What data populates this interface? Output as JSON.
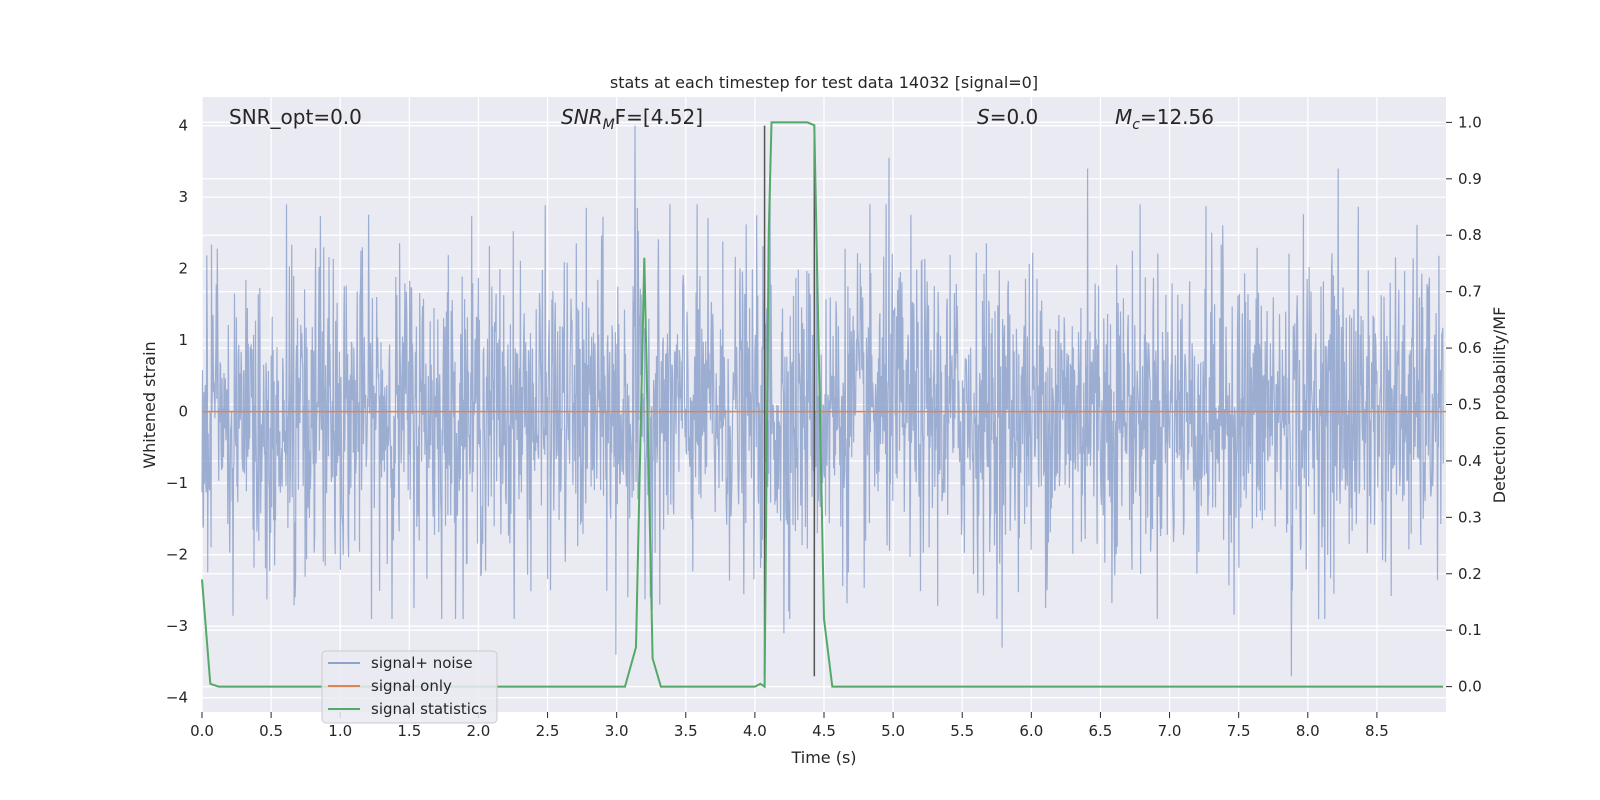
{
  "chart_data": {
    "type": "line",
    "title": "stats at each timestep for test data 14032 [signal=0]",
    "xlabel": "Time (s)",
    "ylabel_left": "Whitened strain",
    "ylabel_right": "Detection probability/MF",
    "xlim": [
      0.0,
      9.0
    ],
    "ylim_left": [
      -4.2,
      4.4
    ],
    "ylim_right": [
      -0.045,
      1.045
    ],
    "x_ticks": [
      "0.0",
      "0.5",
      "1.0",
      "1.5",
      "2.0",
      "2.5",
      "3.0",
      "3.5",
      "4.0",
      "4.5",
      "5.0",
      "5.5",
      "6.0",
      "6.5",
      "7.0",
      "7.5",
      "8.0",
      "8.5"
    ],
    "y_ticks_left": [
      "4",
      "3",
      "2",
      "1",
      "0",
      "−1",
      "−2",
      "−3",
      "−4"
    ],
    "y_ticks_right": [
      "1.0",
      "0.9",
      "0.8",
      "0.7",
      "0.6",
      "0.5",
      "0.4",
      "0.3",
      "0.2",
      "0.1",
      "0.0"
    ],
    "annotations": {
      "snr_opt": "SNR_opt=0.0",
      "snr_mf_main": "SNR",
      "snr_mf_sub": "M",
      "snr_mf_rest": "F=[4.52]",
      "s_main": "S",
      "s_rest": "=0.0",
      "mc_main": "M",
      "mc_sub": "c",
      "mc_rest": "=12.56"
    },
    "grid": true,
    "legend_position": "lower-left",
    "series": [
      {
        "name": "signal+ noise",
        "color": "#8ea2cc",
        "axis": "left",
        "description": "whitened noise, approx. ±1.7 typical with spikes",
        "peaks": [
          [
            3.14,
            4.0
          ],
          [
            4.12,
            3.35
          ],
          [
            4.98,
            3.55
          ],
          [
            6.42,
            3.4
          ],
          [
            8.24,
            3.4
          ],
          [
            7.9,
            -3.7
          ],
          [
            3.0,
            -3.4
          ],
          [
            4.22,
            -3.1
          ],
          [
            5.8,
            -3.3
          ]
        ]
      },
      {
        "name": "signal only",
        "color": "#dd8452",
        "axis": "left",
        "x": [
          0.0,
          9.0
        ],
        "y": [
          0.0,
          0.0
        ]
      },
      {
        "name": "signal statistics",
        "color": "#55a868",
        "axis": "right",
        "x": [
          0.0,
          0.06,
          0.12,
          3.06,
          3.14,
          3.2,
          3.26,
          3.32,
          4.0,
          4.04,
          4.07,
          4.1,
          4.12,
          4.38,
          4.43,
          4.5,
          4.56,
          8.98
        ],
        "y": [
          0.19,
          0.005,
          0.0,
          0.0,
          0.07,
          0.76,
          0.05,
          0.0,
          0.0,
          0.005,
          0.0,
          0.8,
          1.0,
          1.0,
          0.995,
          0.12,
          0.0,
          0.0
        ]
      }
    ],
    "markers": {
      "vertical_lines": [
        {
          "x": 4.07,
          "y_from": -3.7,
          "y_to": 4.0,
          "color": "#555555"
        },
        {
          "x": 4.43,
          "y_from": -3.7,
          "y_to": 4.0,
          "color": "#555555"
        }
      ]
    }
  }
}
